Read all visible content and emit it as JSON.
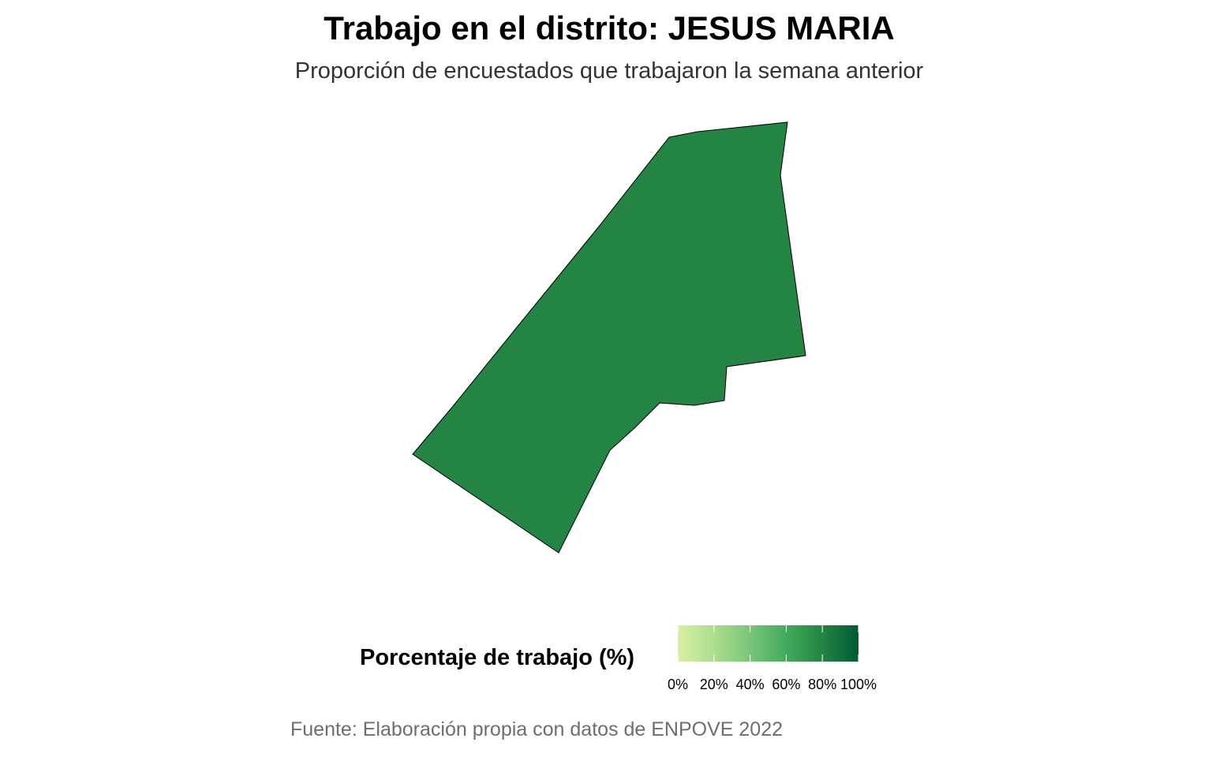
{
  "title": "Trabajo en el distrito: JESUS MARIA",
  "subtitle": "Proporción de encuestados que trabajaron la semana anterior",
  "caption": "Fuente: Elaboración propia con datos de ENPOVE 2022",
  "legend": {
    "title": "Porcentaje de trabajo (%)",
    "ticks": [
      "0%",
      "20%",
      "40%",
      "60%",
      "80%",
      "100%"
    ],
    "colors": [
      "#d9f0a3",
      "#addd8e",
      "#78c679",
      "#41ab5d",
      "#238443",
      "#005a32"
    ]
  },
  "region": {
    "name": "JESUS MARIA",
    "fill": "#238443"
  }
}
